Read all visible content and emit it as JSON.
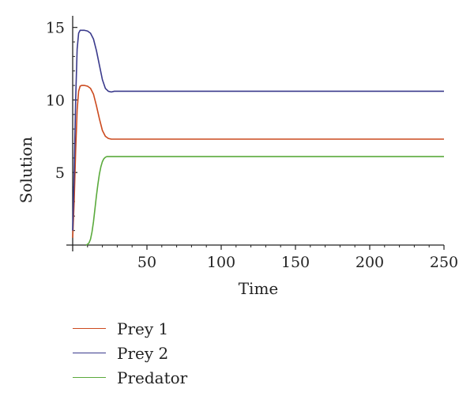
{
  "chart_data": {
    "type": "line",
    "title": "",
    "xlabel": "Time",
    "ylabel": "Solution",
    "xlim": [
      0,
      250
    ],
    "ylim": [
      0,
      15.8
    ],
    "xticks": [
      50,
      100,
      150,
      200,
      250
    ],
    "yticks": [
      5,
      10,
      15
    ],
    "grid": false,
    "legend_position": "bottom-left",
    "series": [
      {
        "name": "Prey 1",
        "color": "#cc4a1e",
        "x": [
          0,
          1,
          2,
          3,
          4,
          5,
          6,
          8,
          10,
          12,
          14,
          16,
          18,
          20,
          22,
          24,
          26,
          30,
          35,
          40,
          60,
          100,
          150,
          200,
          250
        ],
        "y": [
          0.5,
          3.0,
          6.5,
          9.3,
          10.6,
          10.95,
          11.0,
          11.0,
          10.95,
          10.8,
          10.4,
          9.6,
          8.7,
          7.9,
          7.5,
          7.35,
          7.3,
          7.3,
          7.3,
          7.3,
          7.3,
          7.3,
          7.3,
          7.3,
          7.3
        ]
      },
      {
        "name": "Prey 2",
        "color": "#3a3a8c",
        "x": [
          0,
          1,
          2,
          3,
          4,
          5,
          6,
          8,
          10,
          12,
          14,
          16,
          18,
          20,
          22,
          24,
          26,
          28,
          30,
          35,
          40,
          60,
          100,
          150,
          200,
          250
        ],
        "y": [
          1.0,
          5.0,
          10.0,
          13.5,
          14.6,
          14.8,
          14.8,
          14.8,
          14.75,
          14.6,
          14.2,
          13.4,
          12.4,
          11.4,
          10.8,
          10.6,
          10.55,
          10.6,
          10.6,
          10.6,
          10.6,
          10.6,
          10.6,
          10.6,
          10.6,
          10.6
        ]
      },
      {
        "name": "Predator",
        "color": "#5aaa3c",
        "x": [
          9,
          10,
          11,
          12,
          13,
          14,
          15,
          16,
          17,
          18,
          19,
          20,
          21,
          22,
          23,
          24,
          25,
          27,
          30,
          35,
          40,
          60,
          100,
          150,
          200,
          250
        ],
        "y": [
          0.0,
          0.05,
          0.15,
          0.4,
          0.9,
          1.6,
          2.5,
          3.4,
          4.2,
          4.9,
          5.4,
          5.75,
          5.95,
          6.05,
          6.1,
          6.1,
          6.1,
          6.1,
          6.1,
          6.1,
          6.1,
          6.1,
          6.1,
          6.1,
          6.1,
          6.1
        ]
      }
    ]
  }
}
